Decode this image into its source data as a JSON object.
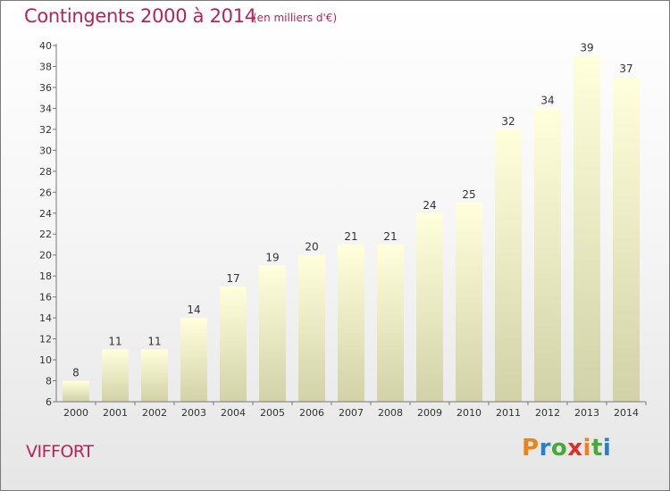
{
  "header": {
    "title": "Contingents 2000 à 2014",
    "subtitle": "(en milliers d'€)"
  },
  "footer": {
    "commune": "VIFFORT",
    "logo_text": "Proxiti",
    "logo_colors": [
      "#e8841a",
      "#2b7fc4",
      "#4aa83a",
      "#d9312b",
      "#e8841a",
      "#4aa83a",
      "#2b7fc4"
    ]
  },
  "colors": {
    "accent": "#b5235a",
    "bar_top": "#ffffdc",
    "bar_bottom": "#d2d2a8"
  },
  "chart_data": {
    "type": "bar",
    "categories": [
      "2000",
      "2001",
      "2002",
      "2003",
      "2004",
      "2005",
      "2006",
      "2007",
      "2008",
      "2009",
      "2010",
      "2011",
      "2012",
      "2013",
      "2014"
    ],
    "values": [
      8,
      11,
      11,
      14,
      17,
      19,
      20,
      21,
      21,
      24,
      25,
      32,
      34,
      39,
      37
    ],
    "title": "Contingents 2000 à 2014",
    "xlabel": "",
    "ylabel": "",
    "ylim": [
      6,
      40
    ],
    "yticks": [
      6,
      8,
      10,
      12,
      14,
      16,
      18,
      20,
      22,
      24,
      26,
      28,
      30,
      32,
      34,
      36,
      38,
      40
    ],
    "grid": false
  }
}
